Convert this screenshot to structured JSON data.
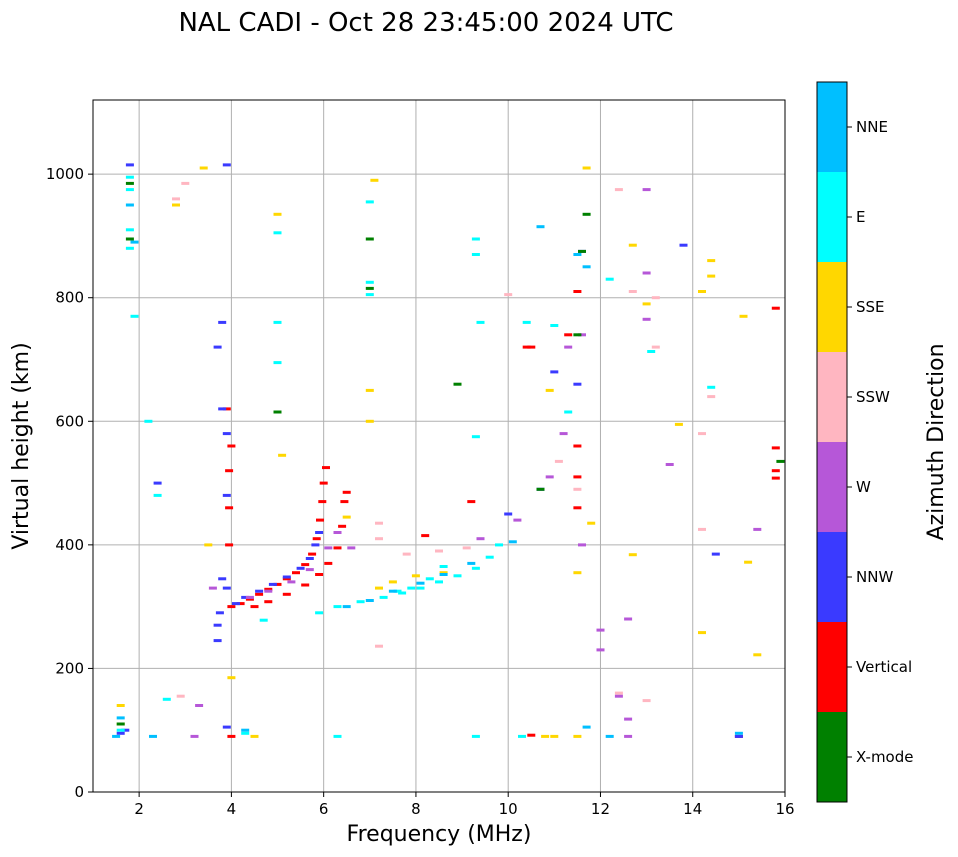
{
  "chart_data": {
    "type": "scatter",
    "title": "NAL CADI - Oct 28 23:45:00 2024 UTC",
    "xlabel": "Frequency (MHz)",
    "ylabel": "Virtual height (km)",
    "xlim": [
      1,
      16
    ],
    "ylim": [
      0,
      1120
    ],
    "xticks": [
      2,
      4,
      6,
      8,
      10,
      12,
      14,
      16
    ],
    "yticks": [
      0,
      200,
      400,
      600,
      800,
      1000
    ],
    "grid": true,
    "colorbar": {
      "label": "Azimuth Direction",
      "categories": [
        {
          "name": "X-mode",
          "color": "#008000"
        },
        {
          "name": "Vertical",
          "color": "#ff0000"
        },
        {
          "name": "NNW",
          "color": "#3a3aff"
        },
        {
          "name": "W",
          "color": "#b657d8"
        },
        {
          "name": "SSW",
          "color": "#ffb6c1"
        },
        {
          "name": "SSE",
          "color": "#ffd700"
        },
        {
          "name": "E",
          "color": "#00ffff"
        },
        {
          "name": "NNE",
          "color": "#00bfff"
        }
      ]
    },
    "series": [
      {
        "name": "Vertical",
        "color": "#ff0000",
        "points": [
          [
            4.0,
            300
          ],
          [
            4.2,
            305
          ],
          [
            4.4,
            312
          ],
          [
            4.6,
            320
          ],
          [
            4.8,
            328
          ],
          [
            5.0,
            336
          ],
          [
            5.2,
            345
          ],
          [
            5.4,
            355
          ],
          [
            5.6,
            368
          ],
          [
            5.75,
            385
          ],
          [
            5.85,
            410
          ],
          [
            5.92,
            440
          ],
          [
            5.97,
            470
          ],
          [
            6.0,
            500
          ],
          [
            6.05,
            525
          ],
          [
            4.5,
            300
          ],
          [
            4.8,
            308
          ],
          [
            5.2,
            320
          ],
          [
            5.6,
            335
          ],
          [
            5.9,
            352
          ],
          [
            6.1,
            370
          ],
          [
            6.3,
            395
          ],
          [
            6.4,
            430
          ],
          [
            6.45,
            470
          ],
          [
            6.5,
            485
          ],
          [
            3.95,
            400
          ],
          [
            3.95,
            460
          ],
          [
            3.95,
            520
          ],
          [
            4.0,
            560
          ],
          [
            3.9,
            620
          ],
          [
            8.2,
            415
          ],
          [
            9.2,
            470
          ],
          [
            10.4,
            720
          ],
          [
            10.5,
            720
          ],
          [
            11.5,
            560
          ],
          [
            11.5,
            510
          ],
          [
            11.5,
            460
          ],
          [
            11.3,
            740
          ],
          [
            11.5,
            810
          ],
          [
            15.8,
            783
          ],
          [
            15.8,
            557
          ],
          [
            15.8,
            520
          ],
          [
            15.8,
            508
          ],
          [
            15.0,
            90
          ],
          [
            10.5,
            92
          ],
          [
            4.0,
            90
          ]
        ]
      },
      {
        "name": "NNW",
        "color": "#3a3aff",
        "points": [
          [
            4.1,
            305
          ],
          [
            4.3,
            315
          ],
          [
            4.6,
            325
          ],
          [
            4.9,
            336
          ],
          [
            5.2,
            348
          ],
          [
            5.5,
            362
          ],
          [
            5.7,
            378
          ],
          [
            5.82,
            400
          ],
          [
            5.9,
            420
          ],
          [
            3.9,
            330
          ],
          [
            3.8,
            345
          ],
          [
            3.75,
            290
          ],
          [
            3.7,
            245
          ],
          [
            3.7,
            270
          ],
          [
            3.8,
            620
          ],
          [
            3.9,
            580
          ],
          [
            3.9,
            480
          ],
          [
            1.8,
            1015
          ],
          [
            3.9,
            1015
          ],
          [
            3.8,
            760
          ],
          [
            3.7,
            720
          ],
          [
            10.0,
            450
          ],
          [
            10.7,
            490
          ],
          [
            11.0,
            680
          ],
          [
            11.6,
            875
          ],
          [
            11.5,
            660
          ],
          [
            13.8,
            885
          ],
          [
            14.5,
            385
          ],
          [
            15.0,
            90
          ],
          [
            3.9,
            105
          ],
          [
            1.6,
            95
          ],
          [
            1.7,
            100
          ],
          [
            2.4,
            500
          ]
        ]
      },
      {
        "name": "W",
        "color": "#b657d8",
        "points": [
          [
            4.4,
            315
          ],
          [
            4.8,
            325
          ],
          [
            5.3,
            340
          ],
          [
            5.7,
            360
          ],
          [
            6.1,
            395
          ],
          [
            6.3,
            420
          ],
          [
            9.4,
            410
          ],
          [
            10.2,
            440
          ],
          [
            10.9,
            510
          ],
          [
            11.2,
            580
          ],
          [
            11.6,
            400
          ],
          [
            12.0,
            262
          ],
          [
            12.0,
            230
          ],
          [
            12.6,
            280
          ],
          [
            12.6,
            118
          ],
          [
            12.6,
            90
          ],
          [
            13.0,
            975
          ],
          [
            13.0,
            840
          ],
          [
            13.0,
            765
          ],
          [
            13.5,
            530
          ],
          [
            15.4,
            425
          ],
          [
            12.4,
            155
          ],
          [
            11.3,
            720
          ],
          [
            11.6,
            740
          ],
          [
            6.6,
            395
          ],
          [
            3.6,
            330
          ],
          [
            3.2,
            90
          ],
          [
            3.3,
            140
          ]
        ]
      },
      {
        "name": "SSW",
        "color": "#ffb6c1",
        "points": [
          [
            7.2,
            435
          ],
          [
            7.2,
            410
          ],
          [
            7.8,
            385
          ],
          [
            8.5,
            390
          ],
          [
            9.1,
            395
          ],
          [
            11.1,
            535
          ],
          [
            11.5,
            490
          ],
          [
            12.4,
            975
          ],
          [
            12.7,
            810
          ],
          [
            13.2,
            800
          ],
          [
            13.2,
            720
          ],
          [
            14.2,
            580
          ],
          [
            14.2,
            425
          ],
          [
            14.4,
            640
          ],
          [
            13.0,
            148
          ],
          [
            10.0,
            805
          ],
          [
            12.4,
            160
          ],
          [
            7.2,
            236
          ],
          [
            2.9,
            155
          ],
          [
            3.0,
            985
          ],
          [
            2.8,
            960
          ]
        ]
      },
      {
        "name": "SSE",
        "color": "#ffd700",
        "points": [
          [
            7.2,
            330
          ],
          [
            7.5,
            340
          ],
          [
            8.0,
            350
          ],
          [
            8.6,
            355
          ],
          [
            6.5,
            445
          ],
          [
            5.1,
            545
          ],
          [
            5.0,
            935
          ],
          [
            7.1,
            990
          ],
          [
            7.0,
            650
          ],
          [
            7.0,
            600
          ],
          [
            11.7,
            1010
          ],
          [
            12.7,
            885
          ],
          [
            13.0,
            790
          ],
          [
            13.7,
            595
          ],
          [
            14.2,
            810
          ],
          [
            14.4,
            860
          ],
          [
            14.4,
            835
          ],
          [
            15.1,
            770
          ],
          [
            15.2,
            372
          ],
          [
            15.4,
            222
          ],
          [
            14.2,
            258
          ],
          [
            12.7,
            384
          ],
          [
            10.8,
            90
          ],
          [
            11.0,
            90
          ],
          [
            11.5,
            90
          ],
          [
            11.8,
            435
          ],
          [
            11.5,
            355
          ],
          [
            10.9,
            650
          ],
          [
            4.0,
            185
          ],
          [
            4.5,
            90
          ],
          [
            3.4,
            1010
          ],
          [
            3.5,
            400
          ],
          [
            2.8,
            950
          ],
          [
            1.6,
            140
          ],
          [
            1.6,
            110
          ]
        ]
      },
      {
        "name": "E",
        "color": "#00ffff",
        "points": [
          [
            5.9,
            290
          ],
          [
            6.3,
            300
          ],
          [
            6.8,
            308
          ],
          [
            7.3,
            315
          ],
          [
            7.7,
            322
          ],
          [
            8.1,
            330
          ],
          [
            8.5,
            340
          ],
          [
            8.9,
            350
          ],
          [
            9.3,
            362
          ],
          [
            9.6,
            380
          ],
          [
            9.8,
            400
          ],
          [
            8.6,
            365
          ],
          [
            8.3,
            345
          ],
          [
            7.9,
            330
          ],
          [
            7.6,
            325
          ],
          [
            9.4,
            760
          ],
          [
            9.3,
            575
          ],
          [
            9.3,
            870
          ],
          [
            9.3,
            895
          ],
          [
            10.4,
            760
          ],
          [
            11.0,
            755
          ],
          [
            11.3,
            615
          ],
          [
            12.2,
            830
          ],
          [
            13.1,
            713
          ],
          [
            14.4,
            655
          ],
          [
            9.3,
            90
          ],
          [
            10.3,
            90
          ],
          [
            6.3,
            90
          ],
          [
            4.3,
            95
          ],
          [
            4.7,
            278
          ],
          [
            7.0,
            805
          ],
          [
            7.0,
            825
          ],
          [
            7.0,
            955
          ],
          [
            5.0,
            695
          ],
          [
            5.0,
            760
          ],
          [
            5.0,
            905
          ],
          [
            1.8,
            995
          ],
          [
            1.8,
            975
          ],
          [
            1.8,
            910
          ],
          [
            1.8,
            880
          ],
          [
            1.9,
            770
          ],
          [
            2.6,
            150
          ],
          [
            2.2,
            600
          ],
          [
            2.4,
            480
          ],
          [
            1.6,
            100
          ]
        ]
      },
      {
        "name": "NNE",
        "color": "#00bfff",
        "points": [
          [
            6.5,
            300
          ],
          [
            7.0,
            310
          ],
          [
            7.5,
            325
          ],
          [
            8.1,
            338
          ],
          [
            8.6,
            352
          ],
          [
            9.2,
            370
          ],
          [
            10.1,
            405
          ],
          [
            10.7,
            915
          ],
          [
            11.5,
            870
          ],
          [
            11.7,
            850
          ],
          [
            12.2,
            90
          ],
          [
            15.0,
            95
          ],
          [
            11.7,
            105
          ],
          [
            4.3,
            100
          ],
          [
            2.3,
            90
          ],
          [
            1.5,
            90
          ],
          [
            1.6,
            120
          ],
          [
            1.8,
            950
          ],
          [
            1.9,
            890
          ]
        ]
      },
      {
        "name": "X-mode",
        "color": "#008000",
        "points": [
          [
            8.9,
            660
          ],
          [
            11.7,
            935
          ],
          [
            11.6,
            875
          ],
          [
            10.7,
            490
          ],
          [
            7.0,
            895
          ],
          [
            7.0,
            815
          ],
          [
            5.0,
            615
          ],
          [
            1.8,
            895
          ],
          [
            1.8,
            985
          ],
          [
            15.9,
            535
          ],
          [
            11.5,
            740
          ],
          [
            1.6,
            110
          ]
        ]
      }
    ]
  }
}
